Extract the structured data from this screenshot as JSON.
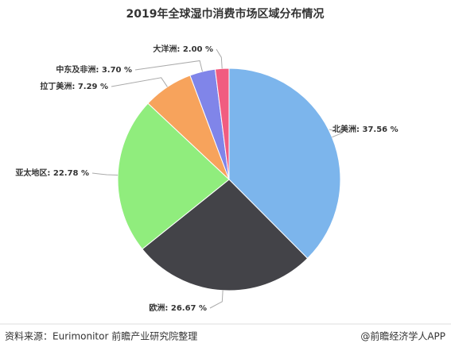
{
  "chart_data": {
    "type": "pie",
    "title": "2019年全球湿巾消费市场区域分布情况",
    "values": [
      37.56,
      26.67,
      22.78,
      7.29,
      3.7,
      2.0
    ],
    "value_labels": [
      "北美洲: 37.56 %",
      "欧洲: 26.67 %",
      "亚太地区: 22.78 %",
      "拉丁美洲: 7.29 %",
      "中东及非洲: 3.70 %",
      "大洋洲: 2.00 %"
    ],
    "colors": [
      "#7cb5ec",
      "#434348",
      "#90ed7d",
      "#f7a35c",
      "#8085e9",
      "#f15c80"
    ],
    "source": "资料来源：Eurimonitor 前瞻产业研究院整理",
    "credit": "@前瞻经济学人APP"
  }
}
